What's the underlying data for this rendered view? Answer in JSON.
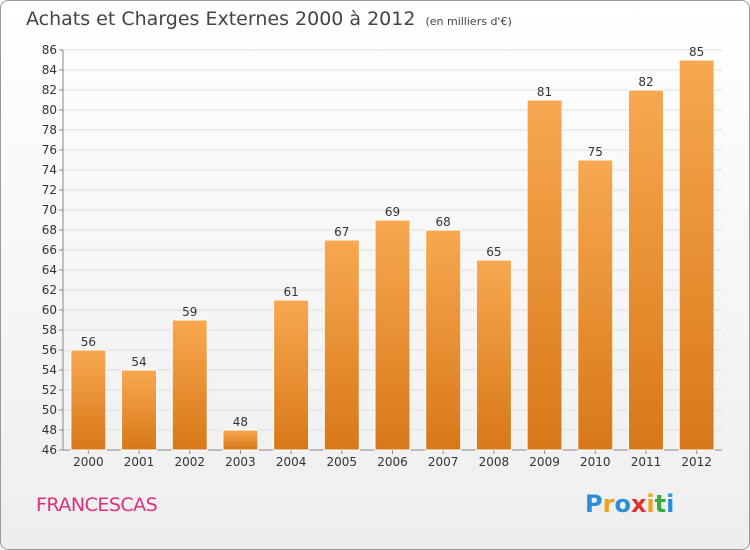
{
  "title": "Achats et Charges Externes 2000 à 2012",
  "subtitle": "(en milliers d'€)",
  "place_label": "FRANCESCAS",
  "logo": {
    "text": "Proxiti",
    "icon": "proxiti-logo"
  },
  "colors": {
    "bar_top": "#f8a850",
    "bar_bottom": "#d87818",
    "accent": "#e0307a",
    "grid": "#dddddd"
  },
  "chart_data": {
    "type": "bar",
    "title": "Achats et Charges Externes 2000 à 2012",
    "subtitle": "(en milliers d'€)",
    "categories": [
      "2000",
      "2001",
      "2002",
      "2003",
      "2004",
      "2005",
      "2006",
      "2007",
      "2008",
      "2009",
      "2010",
      "2011",
      "2012"
    ],
    "values": [
      56,
      54,
      59,
      48,
      61,
      67,
      69,
      68,
      65,
      81,
      75,
      82,
      85
    ],
    "ylim": [
      46,
      86
    ],
    "yticks": [
      46,
      48,
      50,
      52,
      54,
      56,
      58,
      60,
      62,
      64,
      66,
      68,
      70,
      72,
      74,
      76,
      78,
      80,
      82,
      84,
      86
    ],
    "grid": true,
    "data_labels": true
  }
}
